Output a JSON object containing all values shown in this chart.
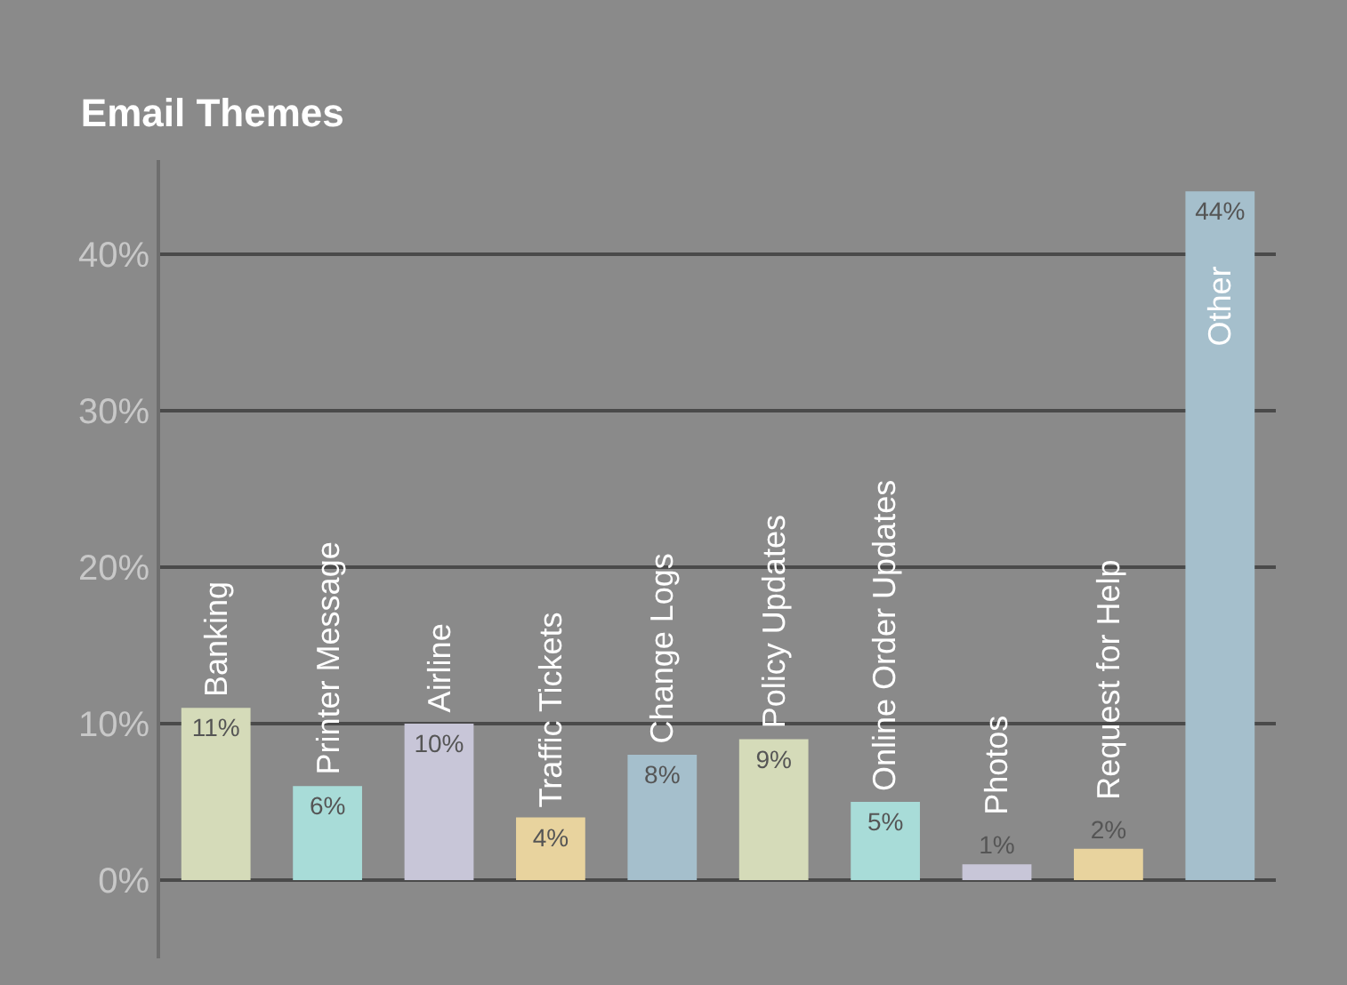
{
  "chart_data": {
    "type": "bar",
    "title": "Email Themes",
    "categories": [
      "Banking",
      "Printer Message",
      "Airline",
      "Traffic Tickets",
      "Change Logs",
      "Policy Updates",
      "Online Order Updates",
      "Photos",
      "Request for Help",
      "Other"
    ],
    "values": [
      11,
      6,
      10,
      4,
      8,
      9,
      5,
      1,
      2,
      44
    ],
    "value_labels": [
      "11%",
      "6%",
      "10%",
      "4%",
      "8%",
      "9%",
      "5%",
      "1%",
      "2%",
      "44%"
    ],
    "colors": [
      "#d5dbb9",
      "#a8dcd8",
      "#c8c6d8",
      "#e8d39e",
      "#a5bfcc",
      "#d5dbb9",
      "#a8dcd8",
      "#c8c6d8",
      "#e8d39e",
      "#a5bfcc"
    ],
    "ylim": [
      -5,
      46
    ],
    "yticks": [
      {
        "value": 0,
        "label": "0%"
      },
      {
        "value": 10,
        "label": "10%"
      },
      {
        "value": 20,
        "label": "20%"
      },
      {
        "value": 30,
        "label": "30%"
      },
      {
        "value": 40,
        "label": "40%"
      }
    ],
    "grid": "y"
  }
}
